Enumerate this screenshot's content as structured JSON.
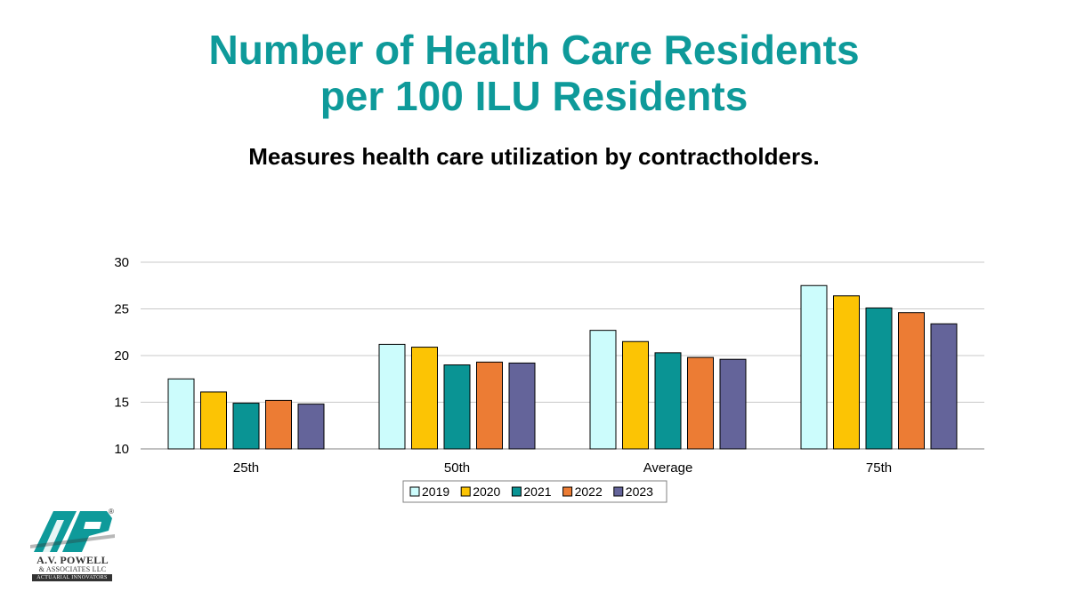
{
  "header": {
    "title_line1": "Number of Health Care Residents",
    "title_line2": "per 100 ILU Residents",
    "subtitle": "Measures health care utilization by contractholders."
  },
  "chart_data": {
    "type": "bar",
    "title": "Number of Health Care Residents per 100 ILU Residents",
    "subtitle": "Measures health care utilization by contractholders.",
    "categories": [
      "25th",
      "50th",
      "Average",
      "75th"
    ],
    "series": [
      {
        "name": "2019",
        "color": "#ccfcfc",
        "values": [
          17.5,
          21.2,
          22.7,
          27.5
        ]
      },
      {
        "name": "2020",
        "color": "#fcc404",
        "values": [
          16.1,
          20.9,
          21.5,
          26.4
        ]
      },
      {
        "name": "2021",
        "color": "#0a9494",
        "values": [
          14.9,
          19.0,
          20.3,
          25.1
        ]
      },
      {
        "name": "2022",
        "color": "#ec7c34",
        "values": [
          15.2,
          19.3,
          19.8,
          24.6
        ]
      },
      {
        "name": "2023",
        "color": "#64649a",
        "values": [
          14.8,
          19.2,
          19.6,
          23.4
        ]
      }
    ],
    "ylim": [
      10,
      30
    ],
    "yticks": [
      10,
      15,
      20,
      25,
      30
    ],
    "grid": true,
    "legend": "bottom",
    "xlabel": "",
    "ylabel": ""
  },
  "logo": {
    "name": "A.V. POWELL",
    "sub": "& ASSOCIATES LLC",
    "tagline": "ACTUARIAL INNOVATORS",
    "registered": "®",
    "colors": {
      "teal": "#0e9a9a",
      "dark": "#333333"
    }
  }
}
